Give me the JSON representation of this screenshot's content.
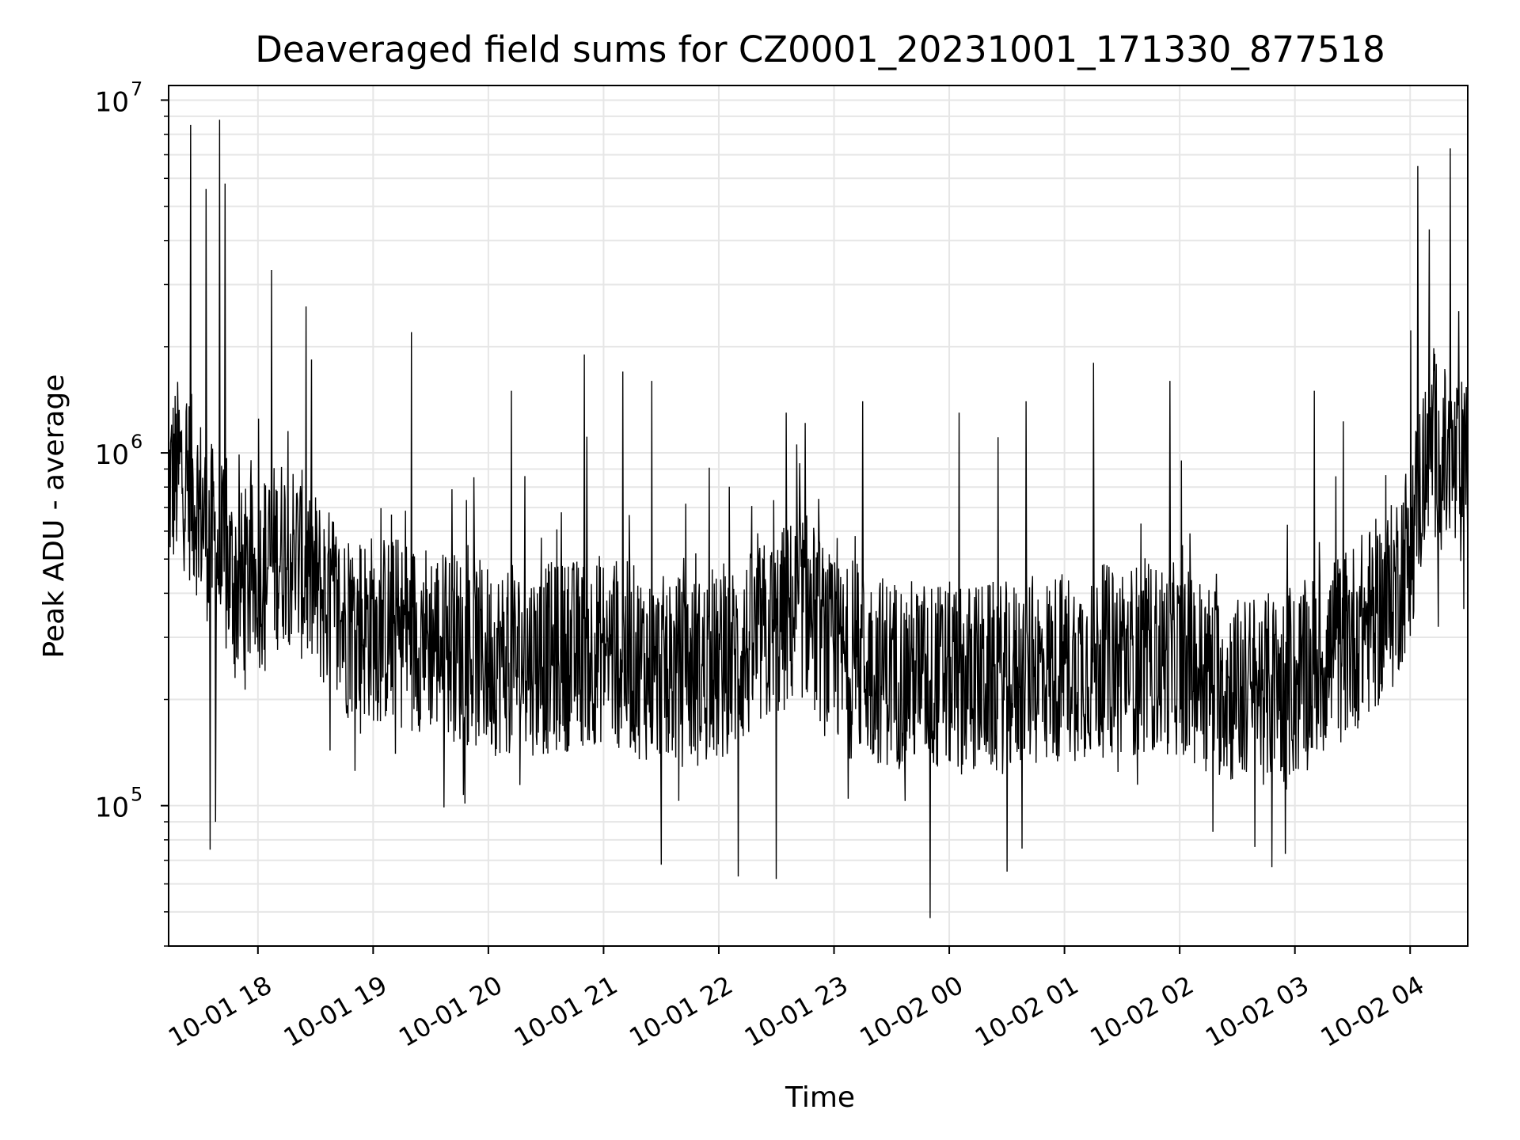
{
  "chart_data": {
    "type": "line",
    "title": "Deaveraged field sums for CZ0001_20231001_171330_877518",
    "xlabel": "Time",
    "ylabel": "Peak ADU - average",
    "yscale": "log",
    "ylim": [
      40000,
      11000000
    ],
    "xlim": [
      "2023-10-01 17:13:30",
      "2023-10-02 04:30:00"
    ],
    "grid": true,
    "line_color": "#000000",
    "grid_color": "#e6e6e6",
    "x_ticks": [
      {
        "time": "2023-10-01 18:00",
        "label": "10-01 18"
      },
      {
        "time": "2023-10-01 19:00",
        "label": "10-01 19"
      },
      {
        "time": "2023-10-01 20:00",
        "label": "10-01 20"
      },
      {
        "time": "2023-10-01 21:00",
        "label": "10-01 21"
      },
      {
        "time": "2023-10-01 22:00",
        "label": "10-01 22"
      },
      {
        "time": "2023-10-01 23:00",
        "label": "10-01 23"
      },
      {
        "time": "2023-10-02 00:00",
        "label": "10-02 00"
      },
      {
        "time": "2023-10-02 01:00",
        "label": "10-02 01"
      },
      {
        "time": "2023-10-02 02:00",
        "label": "10-02 02"
      },
      {
        "time": "2023-10-02 03:00",
        "label": "10-02 03"
      },
      {
        "time": "2023-10-02 04:00",
        "label": "10-02 04"
      }
    ],
    "y_ticks": [
      {
        "value": 100000,
        "base": "10",
        "exp": "5"
      },
      {
        "value": 1000000,
        "base": "10",
        "exp": "6"
      },
      {
        "value": 10000000,
        "base": "10",
        "exp": "7"
      }
    ],
    "series": [
      {
        "x": [
          "2023-10-01 17:13",
          "2023-10-01 17:20",
          "2023-10-01 17:30",
          "2023-10-01 17:40",
          "2023-10-01 17:50",
          "2023-10-01 18:00",
          "2023-10-01 18:15",
          "2023-10-01 18:30",
          "2023-10-01 18:45",
          "2023-10-01 19:00",
          "2023-10-01 19:30",
          "2023-10-01 20:00",
          "2023-10-01 20:30",
          "2023-10-01 21:00",
          "2023-10-01 21:30",
          "2023-10-01 22:00",
          "2023-10-01 22:30",
          "2023-10-01 22:45",
          "2023-10-01 23:00",
          "2023-10-01 23:30",
          "2023-10-02 00:00",
          "2023-10-02 00:30",
          "2023-10-02 01:00",
          "2023-10-02 01:30",
          "2023-10-02 02:00",
          "2023-10-02 02:30",
          "2023-10-02 03:00",
          "2023-10-02 03:30",
          "2023-10-02 03:50",
          "2023-10-02 04:00",
          "2023-10-02 04:10",
          "2023-10-02 04:20",
          "2023-10-02 04:30"
        ],
        "y": [
          800000,
          900000,
          700000,
          500000,
          420000,
          450000,
          550000,
          420000,
          330000,
          320000,
          300000,
          260000,
          260000,
          280000,
          240000,
          240000,
          320000,
          380000,
          260000,
          240000,
          230000,
          230000,
          250000,
          260000,
          260000,
          210000,
          220000,
          300000,
          380000,
          550000,
          1100000,
          900000,
          850000
        ],
        "spikes": [
          {
            "x": "2023-10-01 17:25",
            "y": 8500000
          },
          {
            "x": "2023-10-01 17:40",
            "y": 8800000
          },
          {
            "x": "2023-10-01 17:43",
            "y": 5800000
          },
          {
            "x": "2023-10-01 17:33",
            "y": 5600000
          },
          {
            "x": "2023-10-01 18:07",
            "y": 3300000
          },
          {
            "x": "2023-10-01 18:25",
            "y": 2600000
          },
          {
            "x": "2023-10-01 19:20",
            "y": 2200000
          },
          {
            "x": "2023-10-01 20:12",
            "y": 1500000
          },
          {
            "x": "2023-10-01 20:50",
            "y": 1900000
          },
          {
            "x": "2023-10-01 21:10",
            "y": 1700000
          },
          {
            "x": "2023-10-01 21:25",
            "y": 1600000
          },
          {
            "x": "2023-10-01 22:35",
            "y": 1300000
          },
          {
            "x": "2023-10-01 23:15",
            "y": 1400000
          },
          {
            "x": "2023-10-02 00:05",
            "y": 1300000
          },
          {
            "x": "2023-10-02 00:40",
            "y": 1400000
          },
          {
            "x": "2023-10-02 01:15",
            "y": 1800000
          },
          {
            "x": "2023-10-02 01:55",
            "y": 1600000
          },
          {
            "x": "2023-10-02 03:10",
            "y": 1500000
          },
          {
            "x": "2023-10-02 04:04",
            "y": 6500000
          },
          {
            "x": "2023-10-02 04:10",
            "y": 4300000
          },
          {
            "x": "2023-10-02 04:21",
            "y": 7300000
          }
        ],
        "dips": [
          {
            "x": "2023-10-01 17:35",
            "y": 75000
          },
          {
            "x": "2023-10-01 17:38",
            "y": 90000
          },
          {
            "x": "2023-10-01 21:30",
            "y": 68000
          },
          {
            "x": "2023-10-01 22:10",
            "y": 63000
          },
          {
            "x": "2023-10-01 22:30",
            "y": 62000
          },
          {
            "x": "2023-10-01 23:50",
            "y": 48000
          },
          {
            "x": "2023-10-02 00:30",
            "y": 65000
          },
          {
            "x": "2023-10-02 02:48",
            "y": 67000
          },
          {
            "x": "2023-10-02 02:55",
            "y": 73000
          }
        ]
      }
    ]
  }
}
